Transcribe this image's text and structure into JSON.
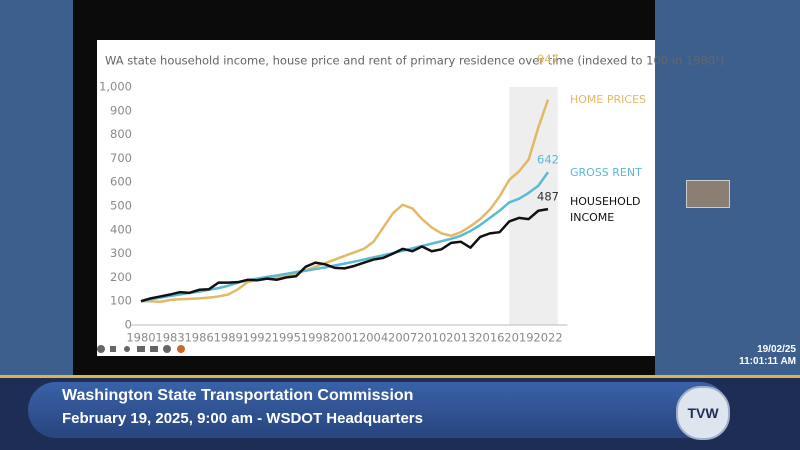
{
  "chart_data": {
    "type": "line",
    "title": "WA state household income, house price and rent of primary residence over time (indexed to 100 in 1980¹)",
    "x": [
      1980,
      1981,
      1982,
      1983,
      1984,
      1985,
      1986,
      1987,
      1988,
      1989,
      1990,
      1991,
      1992,
      1993,
      1994,
      1995,
      1996,
      1997,
      1998,
      1999,
      2000,
      2001,
      2002,
      2003,
      2004,
      2005,
      2006,
      2007,
      2008,
      2009,
      2010,
      2011,
      2012,
      2013,
      2014,
      2015,
      2016,
      2017,
      2018,
      2019,
      2020,
      2021,
      2022
    ],
    "xlim": [
      1979,
      2024
    ],
    "xticks": [
      1980,
      1983,
      1986,
      1989,
      1992,
      1995,
      1998,
      2001,
      2004,
      2007,
      2010,
      2013,
      2016,
      2019,
      2022
    ],
    "ylim": [
      0,
      1000
    ],
    "yticks": [
      0,
      100,
      200,
      300,
      400,
      500,
      600,
      700,
      800,
      900,
      {
        "value": 1000,
        "label": "1,000"
      }
    ],
    "highlight_x": [
      2018,
      2023
    ],
    "series": [
      {
        "name": "HOME PRICES",
        "color": "#e2b965",
        "values": [
          100,
          100,
          97,
          105,
          108,
          110,
          112,
          115,
          120,
          128,
          150,
          180,
          190,
          195,
          200,
          205,
          215,
          230,
          245,
          260,
          275,
          290,
          305,
          320,
          350,
          410,
          470,
          505,
          490,
          445,
          410,
          385,
          375,
          390,
          415,
          445,
          485,
          540,
          610,
          645,
          695,
          830,
          947
        ]
      },
      {
        "name": "GROSS RENT",
        "color": "#5cb9d6",
        "values": [
          100,
          108,
          115,
          122,
          128,
          135,
          140,
          148,
          155,
          165,
          178,
          188,
          195,
          202,
          208,
          215,
          222,
          228,
          235,
          242,
          250,
          258,
          266,
          275,
          284,
          293,
          302,
          312,
          322,
          332,
          342,
          352,
          362,
          375,
          395,
          420,
          450,
          480,
          515,
          530,
          555,
          585,
          642
        ]
      },
      {
        "name": "HOUSEHOLD INCOME",
        "color": "#111111",
        "values": [
          100,
          112,
          120,
          128,
          138,
          135,
          148,
          150,
          178,
          178,
          180,
          190,
          188,
          195,
          190,
          200,
          205,
          245,
          262,
          255,
          240,
          238,
          248,
          262,
          275,
          282,
          300,
          320,
          310,
          330,
          310,
          318,
          345,
          350,
          325,
          370,
          385,
          390,
          435,
          450,
          445,
          480,
          487
        ]
      }
    ]
  },
  "overlay": {
    "date": "19/02/25",
    "time": "11:01:11 AM"
  },
  "banner": {
    "title": "Washington State Transportation Commission",
    "subtitle": "February 19, 2025, 9:00 am - WSDOT Headquarters",
    "logo": "TVW"
  }
}
